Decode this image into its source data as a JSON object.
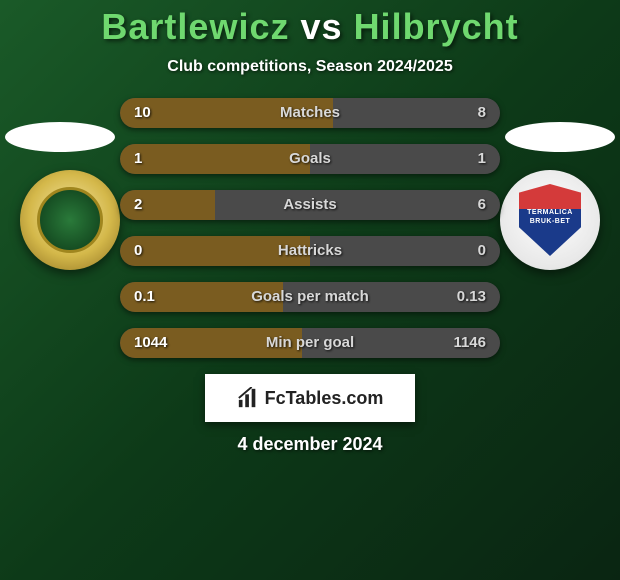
{
  "title": {
    "player1": "Bartlewicz",
    "vs": "vs",
    "player2": "Hilbrycht",
    "color_players": "#6fd86f",
    "color_vs": "#ffffff"
  },
  "subtitle": "Club competitions, Season 2024/2025",
  "badges": {
    "right_shield": {
      "line1": "TERMALICA",
      "line2": "BRUK-BET"
    }
  },
  "stats": {
    "bar": {
      "left_fill_color": "#7a5c20",
      "right_fill_color": "#4a4a4a",
      "track_color": "#3a3a3a"
    },
    "rows": [
      {
        "label": "Matches",
        "left": "10",
        "right": "8",
        "left_pct": 56,
        "right_pct": 44
      },
      {
        "label": "Goals",
        "left": "1",
        "right": "1",
        "left_pct": 50,
        "right_pct": 50
      },
      {
        "label": "Assists",
        "left": "2",
        "right": "6",
        "left_pct": 25,
        "right_pct": 75
      },
      {
        "label": "Hattricks",
        "left": "0",
        "right": "0",
        "left_pct": 50,
        "right_pct": 50
      },
      {
        "label": "Goals per match",
        "left": "0.1",
        "right": "0.13",
        "left_pct": 43,
        "right_pct": 57
      },
      {
        "label": "Min per goal",
        "left": "1044",
        "right": "1146",
        "left_pct": 48,
        "right_pct": 52
      }
    ]
  },
  "footer": {
    "site_name": "FcTables.com",
    "date": "4 december 2024"
  }
}
